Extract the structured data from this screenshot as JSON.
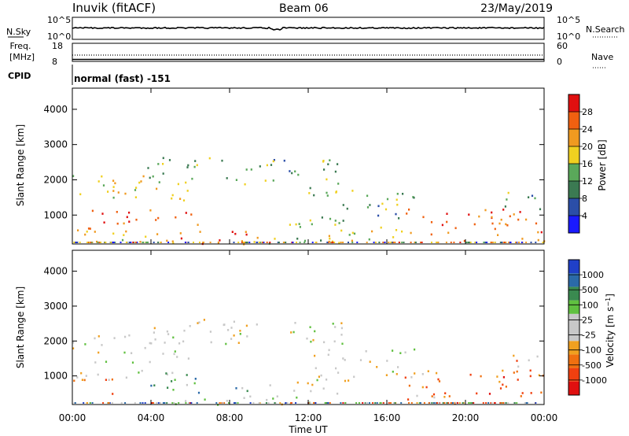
{
  "header": {
    "station": "Inuvik (fitACF)",
    "beam": "Beam 06",
    "date": "23/May/2019"
  },
  "param_panel": {
    "nsky_label": "N.Sky",
    "nsky_ticks": [
      "10^5",
      "10^0"
    ],
    "nsearch_label": "N.Search",
    "nsearch_ticks": [
      "10^5",
      "10^0"
    ],
    "freq_label_1": "Freq.",
    "freq_label_2": "[MHz]",
    "freq_ticks": [
      "18",
      "8"
    ],
    "nave_label": "Nave",
    "nave_ticks": [
      "60",
      "0"
    ],
    "cpid_label": "CPID",
    "cpid_value": "normal (fast) -151"
  },
  "colors": {
    "power_scale": [
      "#1a1aff",
      "#2b4ea8",
      "#3b7a52",
      "#5aa85a",
      "#f0d020",
      "#f09a20",
      "#f06010",
      "#e01010"
    ],
    "velocity_scale": [
      "#e01010",
      "#f04010",
      "#f07010",
      "#f0a020",
      "#c8c8c8",
      "#c8c8c8",
      "#60c040",
      "#3a8a50",
      "#2b6aa8",
      "#2040c8"
    ]
  },
  "chart_data": [
    {
      "type": "heatmap",
      "name": "Power",
      "ylabel": "Slant Range [km]",
      "xlabel": "Time UT",
      "x_ticks": [
        "00:00",
        "04:00",
        "08:00",
        "12:00",
        "16:00",
        "20:00",
        "00:00"
      ],
      "x_range_hours": [
        0,
        24
      ],
      "y_ticks": [
        1000,
        2000,
        3000,
        4000
      ],
      "y_range_km": [
        180,
        4600
      ],
      "colorbar_label": "Power [dB]",
      "colorbar_ticks": [
        "4",
        "8",
        "12",
        "16",
        "20",
        "24",
        "28"
      ],
      "colorbar_range": [
        0,
        32
      ],
      "scatter_regions": [
        {
          "t0": 0.0,
          "t1": 6.2,
          "r0": 1400,
          "r1": 2200,
          "level": 0.55
        },
        {
          "t0": 3.8,
          "t1": 13.9,
          "r0": 1900,
          "r1": 2650,
          "level": 0.4
        },
        {
          "t0": 0.0,
          "t1": 6.5,
          "r0": 500,
          "r1": 1200,
          "level": 0.78
        },
        {
          "t0": 0.0,
          "t1": 5.8,
          "r0": 200,
          "r1": 500,
          "level": 0.6
        },
        {
          "t0": 5.0,
          "t1": 9.0,
          "r0": 200,
          "r1": 700,
          "level": 0.85
        },
        {
          "t0": 9.0,
          "t1": 14.0,
          "r0": 200,
          "r1": 900,
          "level": 0.5
        },
        {
          "t0": 12.0,
          "t1": 17.5,
          "r0": 900,
          "r1": 1800,
          "level": 0.4
        },
        {
          "t0": 12.5,
          "t1": 17.0,
          "r0": 250,
          "r1": 800,
          "level": 0.6
        },
        {
          "t0": 16.8,
          "t1": 24.0,
          "r0": 250,
          "r1": 1200,
          "level": 0.82
        },
        {
          "t0": 21.8,
          "t1": 24.0,
          "r0": 1100,
          "r1": 1700,
          "level": 0.4
        }
      ]
    },
    {
      "type": "heatmap",
      "name": "Velocity",
      "ylabel": "Slant Range [km]",
      "xlabel": "Time UT",
      "x_ticks": [
        "00:00",
        "04:00",
        "08:00",
        "12:00",
        "16:00",
        "20:00",
        "00:00"
      ],
      "x_range_hours": [
        0,
        24
      ],
      "y_ticks": [
        1000,
        2000,
        3000,
        4000
      ],
      "y_range_km": [
        180,
        4600
      ],
      "colorbar_label": "Velocity [m s^-1]",
      "colorbar_ticks": [
        "-1000",
        "-500",
        "-100",
        "-25",
        "25",
        "100",
        "500",
        "1000"
      ],
      "colorbar_range": [
        -1250,
        1250
      ],
      "scatter_regions": [
        {
          "t0": 0.0,
          "t1": 6.2,
          "r0": 1400,
          "r1": 2200,
          "level": 0.5
        },
        {
          "t0": 3.8,
          "t1": 13.9,
          "r0": 1900,
          "r1": 2650,
          "level": 0.5
        },
        {
          "t0": 0.0,
          "t1": 3.0,
          "r0": 500,
          "r1": 1200,
          "level": 0.3
        },
        {
          "t0": 3.0,
          "t1": 6.5,
          "r0": 500,
          "r1": 1200,
          "level": 0.7
        },
        {
          "t0": 5.0,
          "t1": 9.0,
          "r0": 200,
          "r1": 700,
          "level": 0.68
        },
        {
          "t0": 9.0,
          "t1": 14.0,
          "r0": 200,
          "r1": 900,
          "level": 0.5
        },
        {
          "t0": 12.0,
          "t1": 17.5,
          "r0": 900,
          "r1": 1800,
          "level": 0.5
        },
        {
          "t0": 16.8,
          "t1": 24.0,
          "r0": 250,
          "r1": 1200,
          "level": 0.25
        },
        {
          "t0": 21.8,
          "t1": 24.0,
          "r0": 1100,
          "r1": 1700,
          "level": 0.3
        }
      ]
    }
  ]
}
